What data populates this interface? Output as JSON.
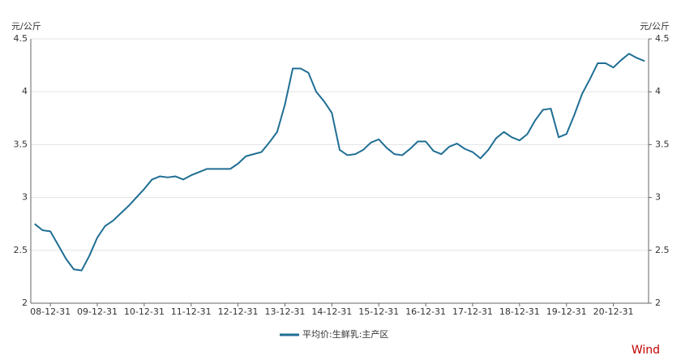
{
  "chart_data": {
    "type": "line",
    "y_label": "元/公斤",
    "y2_label": "元/公斤",
    "categories": [
      null,
      null,
      "08-12-31",
      null,
      null,
      null,
      null,
      null,
      "09-12-31",
      null,
      null,
      null,
      null,
      null,
      "10-12-31",
      null,
      null,
      null,
      null,
      null,
      "11-12-31",
      null,
      null,
      null,
      null,
      null,
      "12-12-31",
      null,
      null,
      null,
      null,
      null,
      "13-12-31",
      null,
      null,
      null,
      null,
      null,
      "14-12-31",
      null,
      null,
      null,
      null,
      null,
      "15-12-31",
      null,
      null,
      null,
      null,
      null,
      "16-12-31",
      null,
      null,
      null,
      null,
      null,
      "17-12-31",
      null,
      null,
      null,
      null,
      null,
      "18-12-31",
      null,
      null,
      null,
      null,
      null,
      "19-12-31",
      null,
      null,
      null,
      null,
      null,
      "20-12-31",
      null,
      null,
      null,
      null
    ],
    "series": [
      {
        "name": "平均价:生鲜乳:主产区",
        "color": "#1f6e94",
        "values": [
          2.75,
          2.69,
          2.68,
          2.55,
          2.42,
          2.32,
          2.31,
          2.45,
          2.62,
          2.73,
          2.78,
          2.85,
          2.92,
          3.0,
          3.08,
          3.17,
          3.2,
          3.19,
          3.2,
          3.17,
          3.21,
          3.24,
          3.27,
          3.27,
          3.27,
          3.27,
          3.32,
          3.39,
          3.41,
          3.43,
          3.52,
          3.62,
          3.88,
          4.22,
          4.22,
          4.18,
          4.0,
          3.91,
          3.8,
          3.45,
          3.4,
          3.41,
          3.45,
          3.52,
          3.55,
          3.47,
          3.41,
          3.4,
          3.46,
          3.53,
          3.53,
          3.44,
          3.41,
          3.48,
          3.51,
          3.46,
          3.43,
          3.37,
          3.45,
          3.56,
          3.62,
          3.57,
          3.54,
          3.6,
          3.73,
          3.83,
          3.84,
          3.57,
          3.6,
          3.78,
          3.98,
          4.12,
          4.27,
          4.27,
          4.23,
          4.3,
          4.36,
          4.32,
          4.29
        ]
      }
    ],
    "ylim": [
      2,
      4.5
    ],
    "yticks": [
      2,
      2.5,
      3,
      3.5,
      4,
      4.5
    ],
    "y2lim": [
      2,
      4.5
    ],
    "y2ticks": [
      2,
      2.5,
      3,
      3.5,
      4,
      4.5
    ],
    "grid": true,
    "legend": "bottom",
    "watermark": "Wind"
  }
}
